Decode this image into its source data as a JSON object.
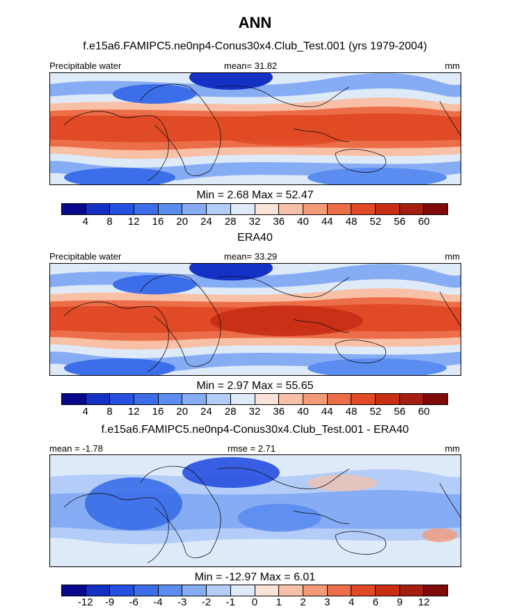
{
  "main_title": "ANN",
  "palettes": {
    "abs": [
      "#08088c",
      "#1530c4",
      "#2650e0",
      "#3b6ee8",
      "#5b8cf0",
      "#86acf4",
      "#b3cdf8",
      "#dfeaf8",
      "#fbe2d6",
      "#f8c0a6",
      "#f39a78",
      "#ec6e48",
      "#e04a26",
      "#c72e14",
      "#a51f10",
      "#800a0a"
    ],
    "diff": [
      "#08088c",
      "#1530c4",
      "#2650e0",
      "#3b6ee8",
      "#5b8cf0",
      "#86acf4",
      "#b3cdf8",
      "#dfeaf8",
      "#fbe2d6",
      "#f8c0a6",
      "#f39a78",
      "#ec6e48",
      "#e04a26",
      "#c72e14",
      "#a51f10",
      "#800a0a"
    ]
  },
  "panels": [
    {
      "title": "f.e15a6.FAMIPC5.ne0np4-Conus30x4.Club_Test.001 (yrs 1979-2004)",
      "left_label": "Precipitable water",
      "mid_label": "mean=  31.82",
      "right_label": "mm",
      "minmax": "Min =   2.68 Max =  52.47",
      "ticks": [
        "4",
        "8",
        "12",
        "16",
        "20",
        "24",
        "28",
        "32",
        "36",
        "40",
        "44",
        "48",
        "52",
        "56",
        "60"
      ],
      "mode": "model"
    },
    {
      "title": "ERA40",
      "left_label": "Precipitable water",
      "mid_label": "mean=  33.29",
      "right_label": "mm",
      "minmax": "Min =   2.97 Max =  55.65",
      "ticks": [
        "4",
        "8",
        "12",
        "16",
        "20",
        "24",
        "28",
        "32",
        "36",
        "40",
        "44",
        "48",
        "52",
        "56",
        "60"
      ],
      "mode": "obs"
    },
    {
      "title": "f.e15a6.FAMIPC5.ne0np4-Conus30x4.Club_Test.001 - ERA40",
      "left_label": "mean =  -1.78",
      "mid_label": "rmse =   2.71",
      "right_label": "mm",
      "minmax": "Min = -12.97 Max =   6.01",
      "ticks": [
        "-12",
        "-9",
        "-6",
        "-4",
        "-3",
        "-2",
        "-1",
        "0",
        "1",
        "2",
        "3",
        "4",
        "6",
        "9",
        "12"
      ],
      "mode": "diff"
    }
  ]
}
